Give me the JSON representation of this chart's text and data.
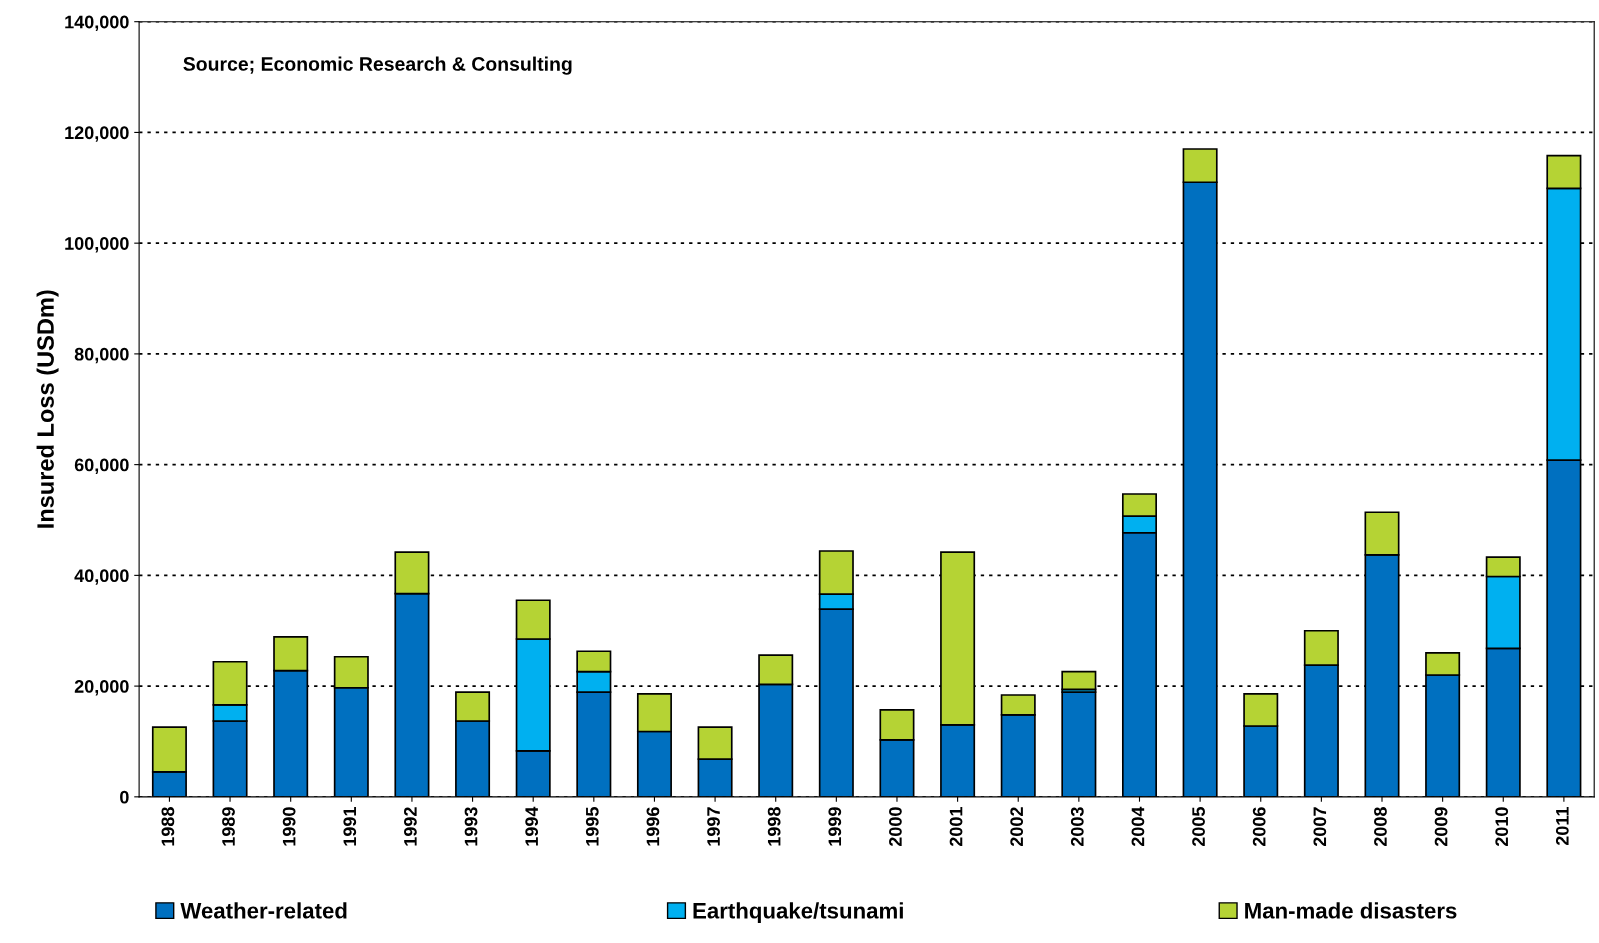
{
  "chart_data": {
    "type": "bar",
    "stacked": true,
    "ylabel": "Insured Loss (USDm)",
    "annotations": [
      "Source; Economic Research & Consulting"
    ],
    "categories": [
      "1988",
      "1989",
      "1990",
      "1991",
      "1992",
      "1993",
      "1994",
      "1995",
      "1996",
      "1997",
      "1998",
      "1999",
      "2000",
      "2001",
      "2002",
      "2003",
      "2004",
      "2005",
      "2006",
      "2007",
      "2008",
      "2009",
      "2010",
      "2011"
    ],
    "series": [
      {
        "name": "Weather-related",
        "color": "#0070c0",
        "values": [
          4500,
          13700,
          22800,
          19700,
          36700,
          13700,
          8300,
          18900,
          11800,
          6800,
          20300,
          33900,
          10300,
          13000,
          14800,
          18900,
          47700,
          111000,
          12800,
          23800,
          43700,
          22000,
          26800,
          60800
        ]
      },
      {
        "name": "Earthquake/tsunami",
        "color": "#00b0f0",
        "values": [
          null,
          2900,
          null,
          null,
          null,
          null,
          20200,
          3700,
          null,
          null,
          null,
          2700,
          null,
          null,
          null,
          500,
          3000,
          null,
          null,
          null,
          null,
          null,
          13000,
          49100
        ]
      },
      {
        "name": "Man-made disasters",
        "color": "#b5d334",
        "values": [
          8100,
          7800,
          6100,
          5600,
          7500,
          5200,
          7000,
          3700,
          6800,
          5800,
          5300,
          7800,
          5400,
          31200,
          3600,
          3200,
          4000,
          6000,
          5800,
          6200,
          7700,
          4000,
          3500,
          5900
        ]
      }
    ],
    "ylim": [
      0,
      140000
    ],
    "yticks": [
      0,
      {
        "value": 20000,
        "label": "20,000"
      },
      {
        "value": 40000,
        "label": "40,000"
      },
      {
        "value": 60000,
        "label": "60,000"
      },
      {
        "value": 80000,
        "label": "80,000"
      },
      {
        "value": 100000,
        "label": "100,000"
      },
      {
        "value": 120000,
        "label": "120,000"
      },
      {
        "value": 140000,
        "label": "140,000"
      }
    ],
    "grid": "y",
    "legend": "bottom"
  }
}
